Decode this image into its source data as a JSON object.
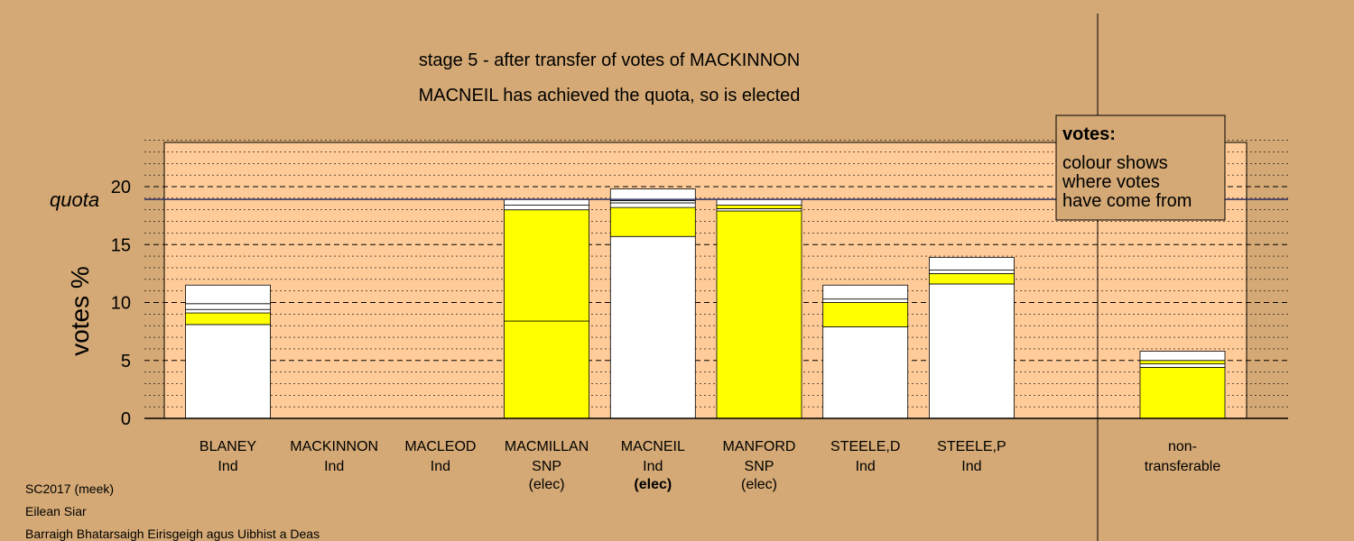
{
  "colors": {
    "background": "#D4A975",
    "plot_area": "#FFCC99",
    "first_pref": "#FFFFFF",
    "transfer_snp": "#FFFF00",
    "quota_line": "#333366"
  },
  "titles": {
    "line1": "stage 5 - after transfer of votes of MACKINNON",
    "line2": "MACNEIL has achieved the quota, so is elected"
  },
  "legend": {
    "title": "votes:",
    "lines": [
      "colour shows",
      "where votes",
      "have come from"
    ]
  },
  "footer": {
    "line1": "SC2017 (meek)",
    "line2": "Eilean Siar",
    "line3": "Barraigh Bhatarsaigh Eirisgeigh agus Uibhist a Deas"
  },
  "chart_data": {
    "type": "bar",
    "stacked": true,
    "ylabel": "votes %",
    "ylim": [
      0,
      24
    ],
    "yticks": [
      0,
      5,
      10,
      15,
      20
    ],
    "quota": 18.9,
    "quota_label": "quota",
    "candidates": [
      {
        "name": "BLANEY",
        "party": "Ind",
        "status": "",
        "segments": [
          {
            "value": 8.1,
            "color": "#FFFFFF"
          },
          {
            "value": 1.0,
            "color": "#FFFF00"
          },
          {
            "value": 0.3,
            "color": "#FFFFFF"
          },
          {
            "value": 0.5,
            "color": "#FFFFFF"
          },
          {
            "value": 1.6,
            "color": "#FFFFFF"
          }
        ]
      },
      {
        "name": "MACKINNON",
        "party": "Ind",
        "status": "",
        "segments": []
      },
      {
        "name": "MACLEOD",
        "party": "Ind",
        "status": "",
        "segments": []
      },
      {
        "name": "MACMILLAN",
        "party": "SNP",
        "status": "(elec)",
        "segments": [
          {
            "value": 8.4,
            "color": "#FFFF00"
          },
          {
            "value": 9.6,
            "color": "#FFFF00"
          },
          {
            "value": 0.4,
            "color": "#FFFFFF"
          },
          {
            "value": 0.5,
            "color": "#FFFFFF"
          }
        ]
      },
      {
        "name": "MACNEIL",
        "party": "Ind",
        "status": "(elec)",
        "segments": [
          {
            "value": 15.7,
            "color": "#FFFFFF"
          },
          {
            "value": 2.5,
            "color": "#FFFF00"
          },
          {
            "value": 0.4,
            "color": "#FFFFFF"
          },
          {
            "value": 0.2,
            "color": "#FFFFFF"
          },
          {
            "value": 1.0,
            "color": "#FFFFFF"
          }
        ]
      },
      {
        "name": "MANFORD",
        "party": "SNP",
        "status": "(elec)",
        "segments": [
          {
            "value": 17.9,
            "color": "#FFFF00"
          },
          {
            "value": 0.2,
            "color": "#FFFFFF"
          },
          {
            "value": 0.3,
            "color": "#FFFF00"
          },
          {
            "value": 0.5,
            "color": "#FFFFFF"
          }
        ]
      },
      {
        "name": "STEELE,D",
        "party": "Ind",
        "status": "",
        "segments": [
          {
            "value": 7.9,
            "color": "#FFFFFF"
          },
          {
            "value": 2.1,
            "color": "#FFFF00"
          },
          {
            "value": 0.3,
            "color": "#FFFFFF"
          },
          {
            "value": 1.2,
            "color": "#FFFFFF"
          }
        ]
      },
      {
        "name": "STEELE,P",
        "party": "Ind",
        "status": "",
        "segments": [
          {
            "value": 11.6,
            "color": "#FFFFFF"
          },
          {
            "value": 0.9,
            "color": "#FFFF00"
          },
          {
            "value": 0.3,
            "color": "#FFFFFF"
          },
          {
            "value": 1.1,
            "color": "#FFFFFF"
          }
        ]
      }
    ],
    "nontransferable": {
      "label_lines": [
        "non-",
        "transferable"
      ],
      "segments": [
        {
          "value": 4.4,
          "color": "#FFFF00"
        },
        {
          "value": 0.3,
          "color": "#FFFFFF"
        },
        {
          "value": 0.3,
          "color": "#FFFF00"
        },
        {
          "value": 0.8,
          "color": "#FFFFFF"
        }
      ]
    }
  }
}
